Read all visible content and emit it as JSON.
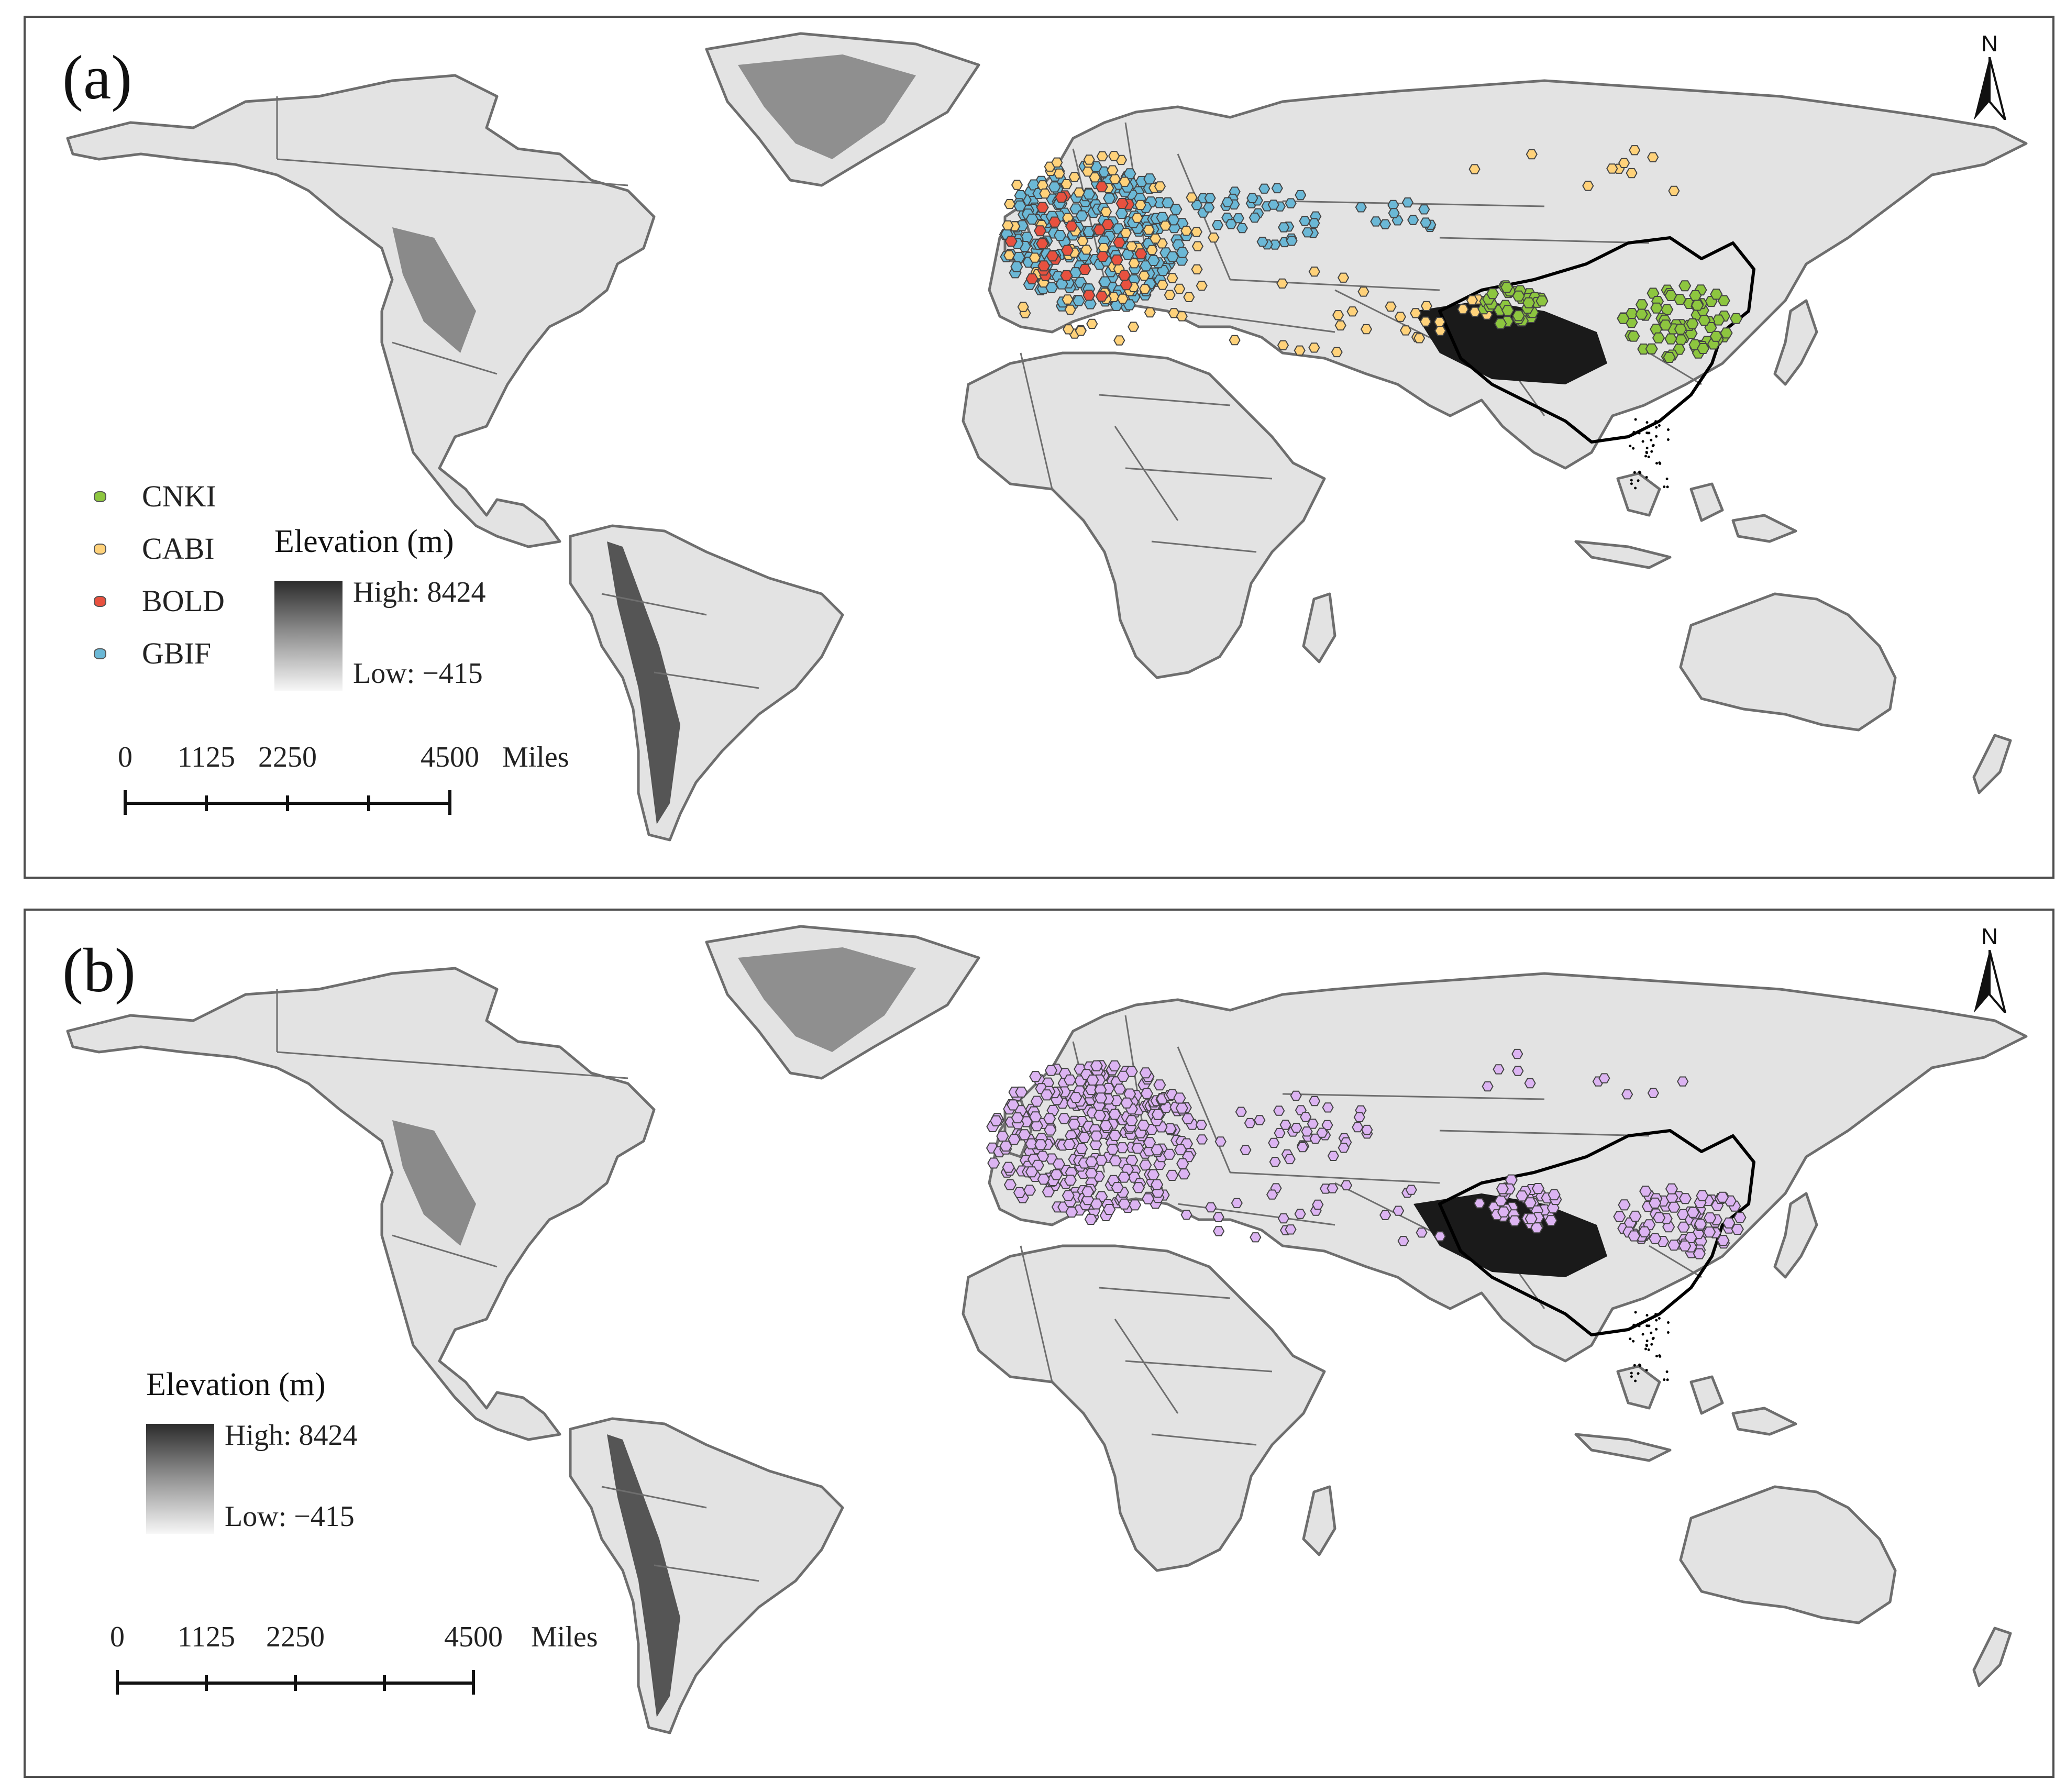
{
  "panels": [
    {
      "label": "(a)",
      "north": "N",
      "legend": [
        {
          "name": "CNKI",
          "color": "#8dc63f"
        },
        {
          "name": "CABI",
          "color": "#ffd27a"
        },
        {
          "name": "BOLD",
          "color": "#e8513f"
        },
        {
          "name": "GBIF",
          "color": "#6bb8d6"
        }
      ],
      "elevation": {
        "title": "Elevation (m)",
        "high": "High: 8424",
        "low": "Low: −415"
      },
      "scale": {
        "ticks": [
          "0",
          "1125",
          "2250",
          "4500"
        ],
        "unit": "Miles"
      }
    },
    {
      "label": "(b)",
      "north": "N",
      "point_color": "#dcb4f2",
      "elevation": {
        "title": "Elevation (m)",
        "high": "High: 8424",
        "low": "Low: −415"
      },
      "scale": {
        "ticks": [
          "0",
          "1125",
          "2250",
          "4500"
        ],
        "unit": "Miles"
      }
    }
  ],
  "colors": {
    "land": "#e3e3e3",
    "border": "#6e6e6e",
    "highland": "#1a1a1a",
    "china_border": "#000000"
  }
}
